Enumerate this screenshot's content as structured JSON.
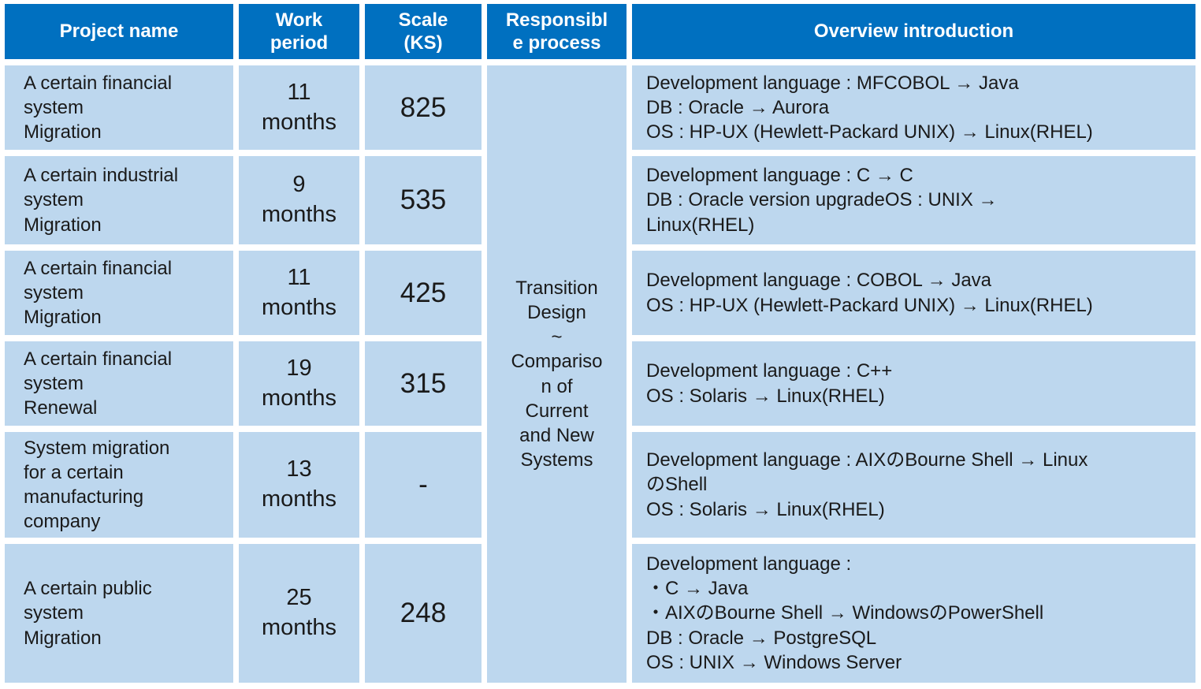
{
  "table": {
    "columns": [
      {
        "label": "Project name"
      },
      {
        "label": "Work\nperiod"
      },
      {
        "label": "Scale\n(KS)"
      },
      {
        "label": "Responsible process"
      },
      {
        "label": "Overview introduction"
      }
    ],
    "responsible_process": "Transition Design\n~\nComparison of Current and New Systems",
    "rows": [
      {
        "project": "A certain financial system\nMigration",
        "period": "11\nmonths",
        "scale": "825",
        "overview": "Development language : MFCOBOL → Java\nDB : Oracle → Aurora\nOS : HP-UX (Hewlett-Packard UNIX) → Linux(RHEL)"
      },
      {
        "project": "A certain industrial system\nMigration",
        "period": "9\nmonths",
        "scale": "535",
        "overview": "Development language : C → C\nDB : Oracle version upgradeOS : UNIX →\nLinux(RHEL)"
      },
      {
        "project": "A certain financial system\nMigration",
        "period": "11\nmonths",
        "scale": "425",
        "overview": "Development language : COBOL → Java\nOS : HP-UX (Hewlett-Packard UNIX) → Linux(RHEL)"
      },
      {
        "project": "A certain financial system\nRenewal",
        "period": "19\nmonths",
        "scale": "315",
        "overview": "Development language : C++\nOS : Solaris → Linux(RHEL)"
      },
      {
        "project": "System migration for a certain manufacturing company",
        "period": "13\nmonths",
        "scale": "-",
        "overview": "Development language : AIXのBourne Shell → Linux\nのShell\nOS : Solaris → Linux(RHEL)"
      },
      {
        "project": "A certain public system\nMigration",
        "period": "25\nmonths",
        "scale": "248",
        "overview": "Development language :\n・C → Java\n・AIXのBourne Shell → WindowsのPowerShell\nDB : Oracle → PostgreSQL\nOS : UNIX → Windows Server"
      }
    ]
  },
  "colors": {
    "header_bg": "#0070C0",
    "header_text": "#FFFFFF",
    "cell_bg": "#BDD7EE",
    "grid_lines": "#FFFFFF",
    "body_text": "#1A1A1A"
  }
}
